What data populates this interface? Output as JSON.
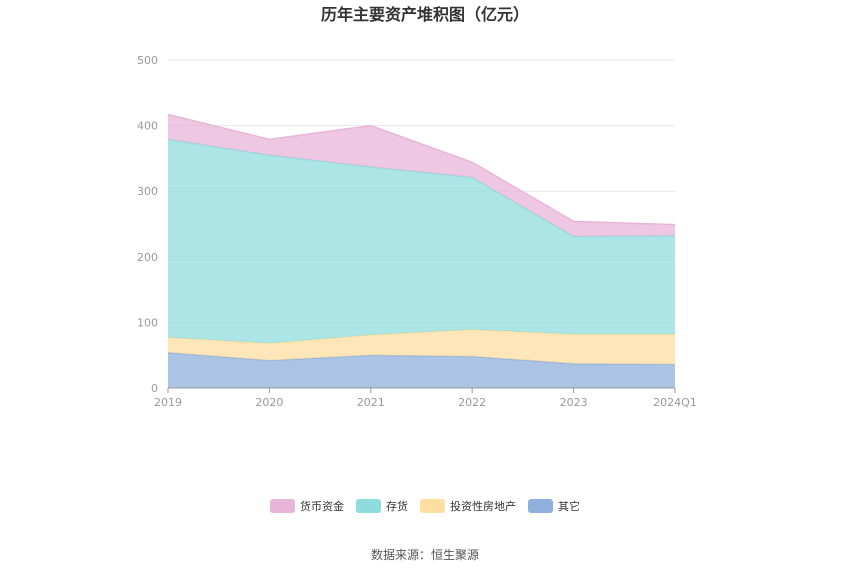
{
  "chart_data": {
    "type": "area",
    "stacked": true,
    "title": "历年主要资产堆积图（亿元）",
    "categories": [
      "2019",
      "2020",
      "2021",
      "2022",
      "2023",
      "2024Q1"
    ],
    "ylim": [
      0,
      500
    ],
    "yticks": [
      0,
      100,
      200,
      300,
      400,
      500
    ],
    "grid": true,
    "legend_position": "bottom",
    "series": [
      {
        "name": "其它",
        "color": "#8fb0dd",
        "values": [
          54,
          42,
          50,
          48,
          37,
          36
        ]
      },
      {
        "name": "投资性房地产",
        "color": "#fedea1",
        "values": [
          23,
          26,
          31,
          41,
          45,
          46
        ]
      },
      {
        "name": "存货",
        "color": "#8fdcdc",
        "values": [
          302,
          287,
          256,
          232,
          149,
          150
        ]
      },
      {
        "name": "货币资金",
        "color": "#e8b5d8",
        "values": [
          38,
          24,
          63,
          23,
          23,
          17
        ]
      }
    ],
    "legend_order": [
      "货币资金",
      "存货",
      "投资性房地产",
      "其它"
    ]
  },
  "source_text": "数据来源：恒生聚源"
}
